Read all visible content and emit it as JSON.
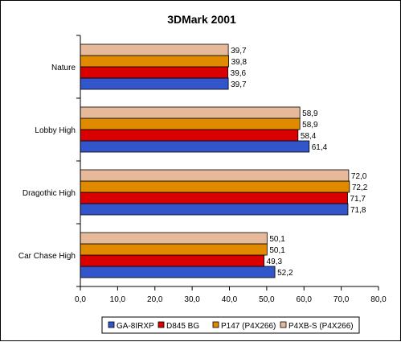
{
  "chart_data": {
    "type": "bar",
    "orientation": "horizontal",
    "title": "3DMark 2001",
    "xlabel": "",
    "ylabel": "",
    "xlim": [
      0,
      80
    ],
    "x_ticks": [
      "0,0",
      "10,0",
      "20,0",
      "30,0",
      "40,0",
      "50,0",
      "60,0",
      "70,0",
      "80,0"
    ],
    "grid": false,
    "legend_position": "bottom",
    "categories": [
      "Nature",
      "Lobby High",
      "Dragothic High",
      "Car Chase High"
    ],
    "series": [
      {
        "name": "GA-8IRXP",
        "color": "#3355cc",
        "values": [
          39.7,
          61.4,
          71.8,
          52.2
        ],
        "labels": [
          "39,7",
          "61,4",
          "71,8",
          "52,2"
        ]
      },
      {
        "name": "D845 BG",
        "color": "#d80000",
        "values": [
          39.6,
          58.4,
          71.7,
          49.3
        ],
        "labels": [
          "39,6",
          "58,4",
          "71,7",
          "49,3"
        ]
      },
      {
        "name": "P147 (P4X266)",
        "color": "#e08a00",
        "values": [
          39.8,
          58.9,
          72.2,
          50.1
        ],
        "labels": [
          "39,8",
          "58,9",
          "72,2",
          "50,1"
        ]
      },
      {
        "name": "P4XB-S (P4X266)",
        "color": "#e6b99a",
        "values": [
          39.7,
          58.9,
          72.0,
          50.1
        ],
        "labels": [
          "39,7",
          "58,9",
          "72,0",
          "50,1"
        ]
      }
    ]
  }
}
